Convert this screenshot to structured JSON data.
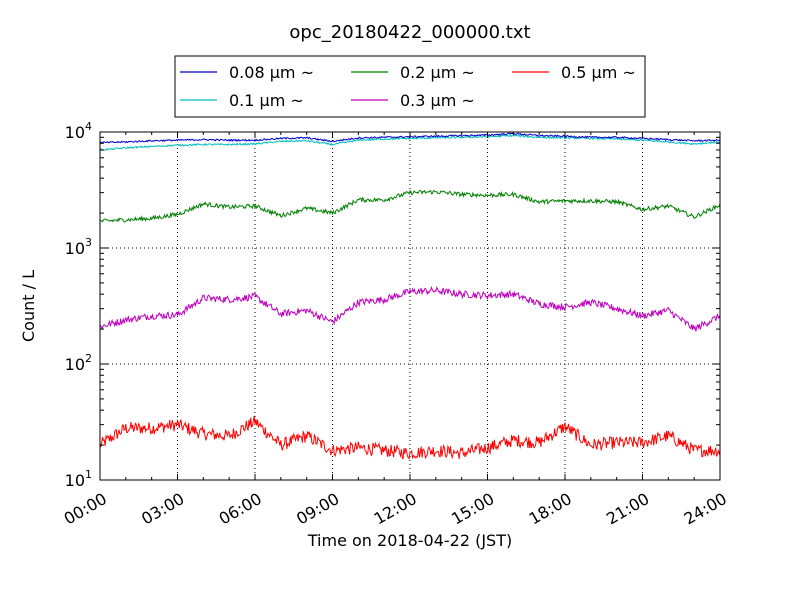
{
  "chart_data": {
    "type": "line",
    "title": "opc_20180422_000000.txt",
    "xlabel": "Time on 2018-04-22 (JST)",
    "ylabel": "Count / L",
    "y_scale": "log",
    "ylim": [
      10,
      10000
    ],
    "xlim": [
      "00:00",
      "24:00"
    ],
    "x_ticks": [
      "00:00",
      "03:00",
      "06:00",
      "09:00",
      "12:00",
      "15:00",
      "18:00",
      "21:00",
      "24:00"
    ],
    "y_ticks": [
      {
        "value": 10,
        "base": "10",
        "exp": "1"
      },
      {
        "value": 100,
        "base": "10",
        "exp": "2"
      },
      {
        "value": 1000,
        "base": "10",
        "exp": "3"
      },
      {
        "value": 10000,
        "base": "10",
        "exp": "4"
      }
    ],
    "grid": true,
    "legend_position": "top-center",
    "x": [
      "00:00",
      "01:00",
      "02:00",
      "03:00",
      "04:00",
      "05:00",
      "06:00",
      "07:00",
      "08:00",
      "09:00",
      "10:00",
      "11:00",
      "12:00",
      "13:00",
      "14:00",
      "15:00",
      "16:00",
      "17:00",
      "18:00",
      "19:00",
      "20:00",
      "21:00",
      "22:00",
      "23:00",
      "24:00"
    ],
    "series": [
      {
        "name": "0.08 μm ~",
        "color": "#0000cc",
        "values": [
          8100,
          8200,
          8400,
          8500,
          8600,
          8500,
          8500,
          8800,
          8900,
          8300,
          8900,
          9000,
          9100,
          9200,
          9300,
          9400,
          9700,
          9300,
          9200,
          9000,
          9000,
          8800,
          8600,
          8400,
          8500
        ]
      },
      {
        "name": "0.2 μm ~",
        "color": "#008000",
        "values": [
          1700,
          1750,
          1800,
          1950,
          2400,
          2250,
          2300,
          1900,
          2200,
          2000,
          2600,
          2600,
          3000,
          3050,
          2900,
          2850,
          2900,
          2500,
          2550,
          2550,
          2500,
          2150,
          2300,
          1850,
          2350
        ]
      },
      {
        "name": "0.5 μm ~",
        "color": "#ff0000",
        "values": [
          20,
          28,
          28,
          30,
          25,
          24,
          32,
          20,
          24,
          18,
          19,
          18,
          17,
          18,
          17,
          19,
          22,
          21,
          29,
          20,
          21,
          21,
          24,
          18,
          18
        ]
      },
      {
        "name": "0.1 μm ~",
        "color": "#00bfbf",
        "values": [
          7000,
          7300,
          7500,
          7700,
          7800,
          7800,
          7900,
          8300,
          8400,
          7800,
          8500,
          8700,
          8800,
          8900,
          9000,
          9100,
          9300,
          9000,
          8900,
          8800,
          8700,
          8500,
          8200,
          7900,
          8200
        ]
      },
      {
        "name": "0.3 μm ~",
        "color": "#bf00bf",
        "values": [
          210,
          240,
          260,
          265,
          370,
          360,
          380,
          270,
          290,
          230,
          340,
          360,
          420,
          430,
          400,
          390,
          400,
          330,
          310,
          340,
          300,
          260,
          290,
          200,
          260
        ]
      }
    ]
  }
}
